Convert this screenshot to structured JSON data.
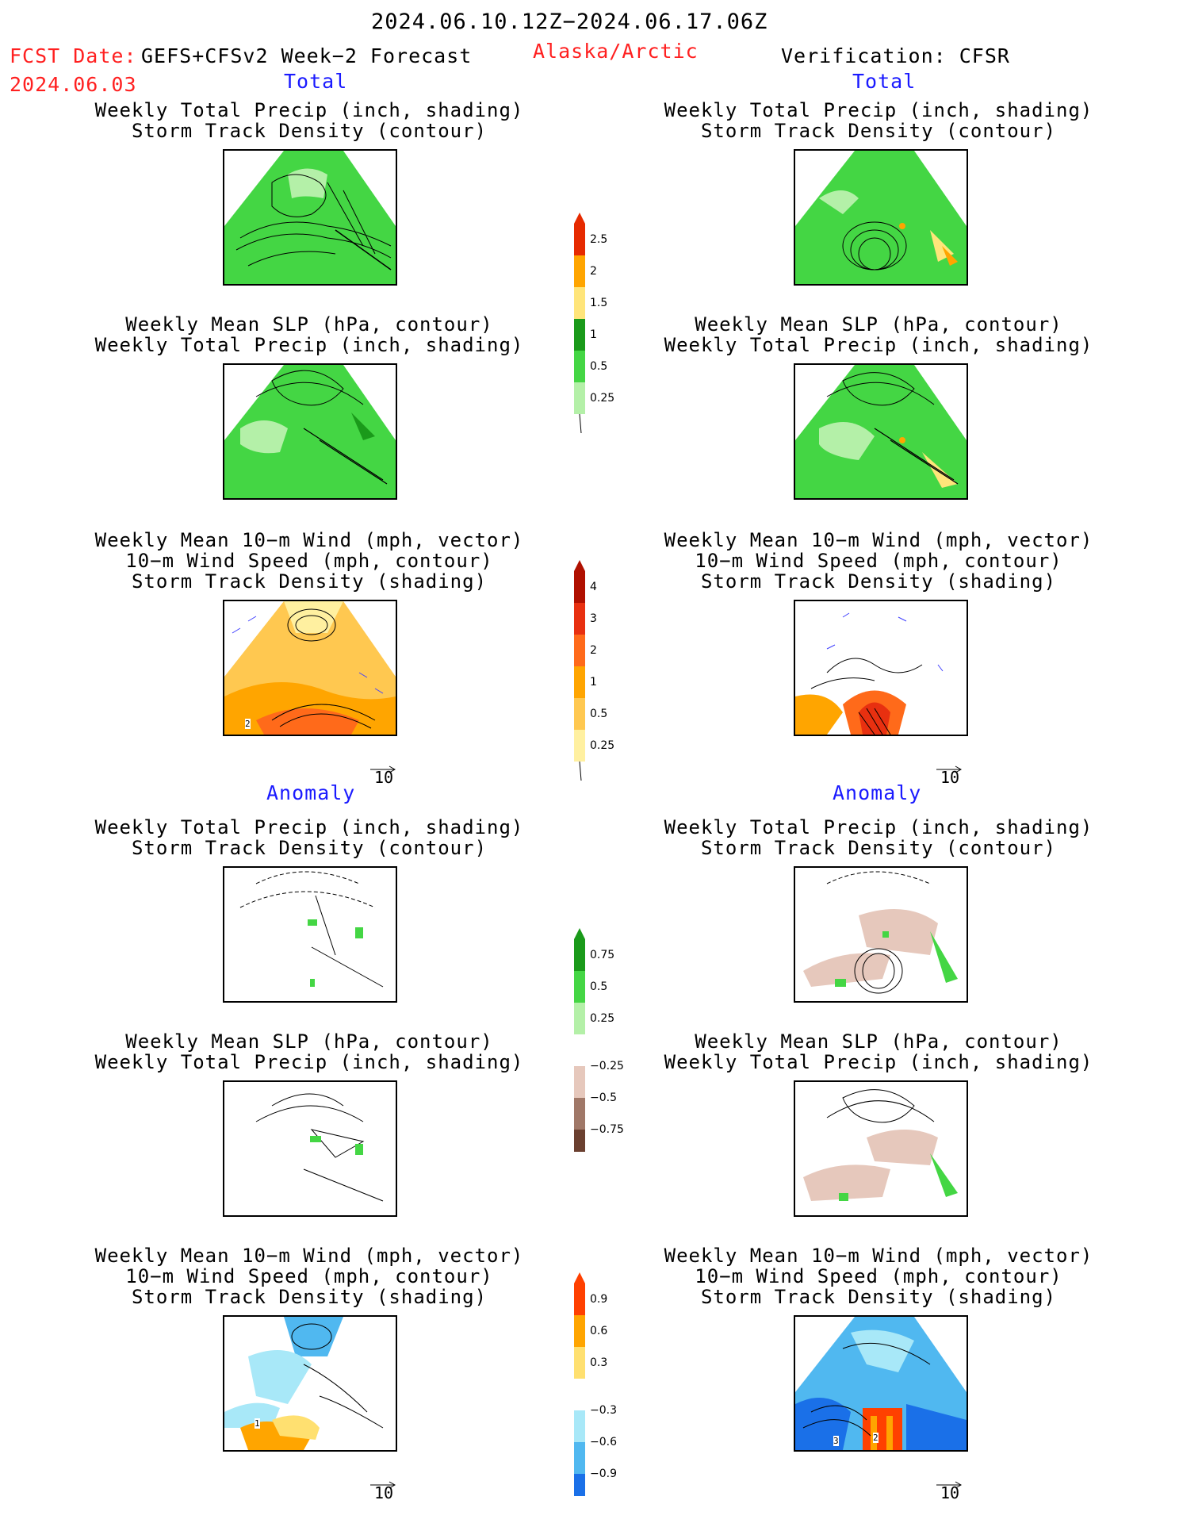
{
  "header": {
    "date_range": "2024.06.10.12Z−2024.06.17.06Z",
    "fcst_label": "FCST Date:",
    "fcst_model": "GEFS+CFSv2 Week−2 Forecast",
    "fcst_date": "2024.06.03",
    "region": "Alaska/Arctic",
    "verification": "Verification: CFSR"
  },
  "columns": {
    "left_total": "Total",
    "right_total": "Total",
    "left_anomaly": "Anomaly",
    "right_anomaly": "Anomaly"
  },
  "titles": {
    "precip_track": [
      "Weekly Total Precip (inch, shading)",
      "Storm Track Density (contour)"
    ],
    "slp_precip": [
      "Weekly Mean SLP (hPa, contour)",
      "Weekly Total Precip (inch, shading)"
    ],
    "wind_track": [
      "Weekly Mean 10−m Wind (mph, vector)",
      "10−m Wind Speed (mph, contour)",
      "Storm Track Density (shading)"
    ]
  },
  "vector_ref": "10",
  "colorbars": {
    "precip_total": {
      "labels": [
        "2.5",
        "2",
        "1.5",
        "1",
        "0.5",
        "0.25"
      ],
      "colors": [
        "#e62a00",
        "#ffa500",
        "#ffe57a",
        "#1a9a1a",
        "#44d644",
        "#b4f0a8"
      ]
    },
    "track_total": {
      "labels": [
        "4",
        "3",
        "2",
        "1",
        "0.5",
        "0.25"
      ],
      "colors": [
        "#b01000",
        "#e83010",
        "#ff6a1a",
        "#ffa500",
        "#ffc850",
        "#fff0a0"
      ]
    },
    "precip_anom": {
      "labels": [
        "0.75",
        "0.5",
        "0.25",
        "−0.25",
        "−0.5",
        "−0.75"
      ],
      "colors": [
        "#1a9a1a",
        "#44d644",
        "#b4f0a8",
        "#e6c8bc",
        "#a07868",
        "#6b4030"
      ]
    },
    "track_anom": {
      "labels": [
        "0.9",
        "0.6",
        "0.3",
        "−0.3",
        "−0.6",
        "−0.9"
      ],
      "colors": [
        "#ff4000",
        "#ffa500",
        "#ffe070",
        "#a8e8f8",
        "#50b8f0",
        "#1a70e8"
      ]
    }
  },
  "panel_labels": {
    "wind_left_total": "2",
    "wind_left_anom": "1",
    "wind_right_anom_a": "3",
    "wind_right_anom_b": "2"
  }
}
